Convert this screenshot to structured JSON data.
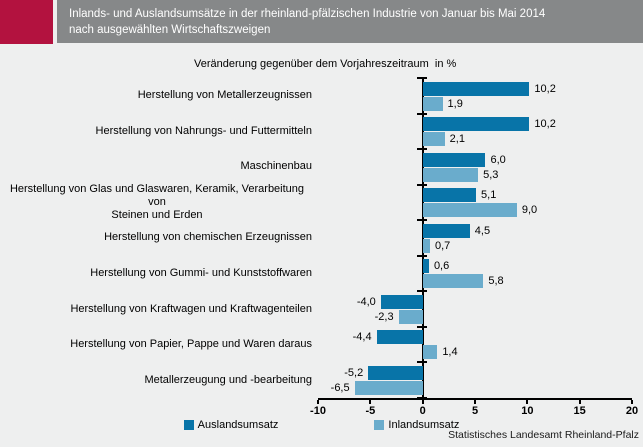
{
  "header": {
    "title": "Inlands- und Auslandsumsätze in der rheinland-pfälzischen Industrie von Januar bis Mai 2014\nnach ausgewählten Wirtschaftszweigen",
    "accent_color": "#b3123f",
    "band_color": "#868889"
  },
  "chart_data": {
    "type": "bar",
    "orientation": "horizontal",
    "title": "Veränderung gegenüber dem Vorjahreszeitraum  in %",
    "categories": [
      "Herstellung von Metallerzeugnissen",
      "Herstellung von Nahrungs- und Futtermitteln",
      "Maschinenbau",
      "Herstellung von Glas und Glaswaren, Keramik, Verarbeitung von\nSteinen und Erden",
      "Herstellung von chemischen Erzeugnissen",
      "Herstellung von Gummi- und Kunststoffwaren",
      "Herstellung von Kraftwagen und Kraftwagenteilen",
      "Herstellung von Papier, Pappe und Waren daraus",
      "Metallerzeugung und -bearbeitung"
    ],
    "series": [
      {
        "name": "Auslandsumsatz",
        "color": "#0874a8",
        "values": [
          10.2,
          10.2,
          6.0,
          5.1,
          4.5,
          0.6,
          -4.0,
          -4.4,
          -5.2
        ]
      },
      {
        "name": "Inlandsumsatz",
        "color": "#6aaccc",
        "values": [
          1.9,
          2.1,
          5.3,
          9.0,
          0.7,
          5.8,
          -2.3,
          1.4,
          -6.5
        ]
      }
    ],
    "xlim": [
      -10,
      20
    ],
    "x_ticks": [
      -10,
      -5,
      0,
      5,
      10,
      15,
      20
    ],
    "value_decimal": "comma",
    "grid": false,
    "legend_position": "bottom"
  },
  "footer": {
    "source": "Statistisches Landesamt Rheinland-Pfalz"
  }
}
